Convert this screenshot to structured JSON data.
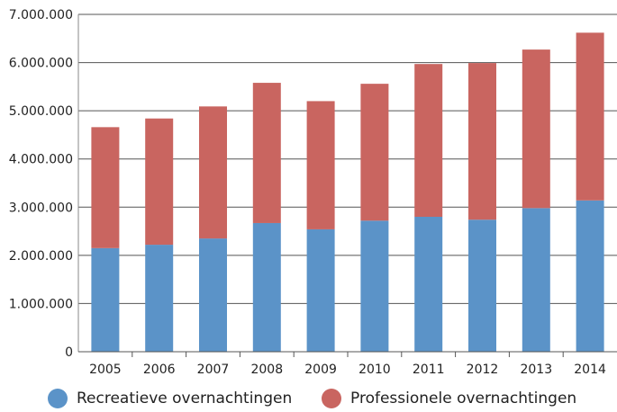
{
  "chart_data": {
    "type": "bar",
    "stacked": true,
    "title": "",
    "xlabel": "",
    "ylabel": "",
    "categories": [
      "2005",
      "2006",
      "2007",
      "2008",
      "2009",
      "2010",
      "2011",
      "2012",
      "2013",
      "2014"
    ],
    "series": [
      {
        "name": "Recreatieve overnachtingen",
        "color": "#5b93c8",
        "values": [
          2150000,
          2220000,
          2350000,
          2670000,
          2540000,
          2720000,
          2800000,
          2740000,
          2980000,
          3140000
        ]
      },
      {
        "name": "Professionele overnachtingen",
        "color": "#c96560",
        "values": [
          2510000,
          2620000,
          2740000,
          2910000,
          2660000,
          2840000,
          3170000,
          3250000,
          3290000,
          3480000
        ]
      }
    ],
    "ylim": [
      0,
      7000000
    ],
    "yticks": [
      0,
      1000000,
      2000000,
      3000000,
      4000000,
      5000000,
      6000000,
      7000000
    ],
    "ytick_labels": [
      "0",
      "1.000.000",
      "2.000.000",
      "3.000.000",
      "4.000.000",
      "5.000.000",
      "6.000.000",
      "7.000.000"
    ],
    "grid": true,
    "legend_position": "bottom"
  }
}
